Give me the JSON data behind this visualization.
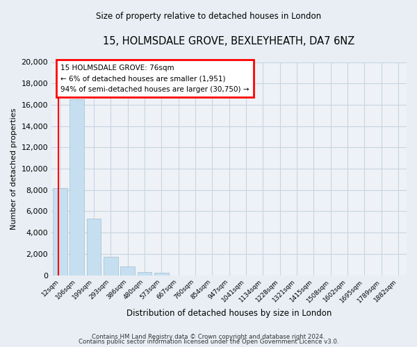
{
  "title": "15, HOLMSDALE GROVE, BEXLEYHEATH, DA7 6NZ",
  "subtitle": "Size of property relative to detached houses in London",
  "xlabel": "Distribution of detached houses by size in London",
  "ylabel": "Number of detached properties",
  "bar_labels": [
    "12sqm",
    "106sqm",
    "199sqm",
    "293sqm",
    "386sqm",
    "480sqm",
    "573sqm",
    "667sqm",
    "760sqm",
    "854sqm",
    "947sqm",
    "1041sqm",
    "1134sqm",
    "1228sqm",
    "1321sqm",
    "1415sqm",
    "1508sqm",
    "1602sqm",
    "1695sqm",
    "1789sqm",
    "1882sqm"
  ],
  "bar_values": [
    8200,
    16500,
    5300,
    1750,
    800,
    300,
    250,
    0,
    0,
    0,
    0,
    0,
    0,
    0,
    0,
    0,
    0,
    0,
    0,
    0,
    0
  ],
  "bar_color": "#c5dff0",
  "annotation_title": "15 HOLMSDALE GROVE: 76sqm",
  "annotation_line1": "← 6% of detached houses are smaller (1,951)",
  "annotation_line2": "94% of semi-detached houses are larger (30,750) →",
  "ylim": [
    0,
    20000
  ],
  "yticks": [
    0,
    2000,
    4000,
    6000,
    8000,
    10000,
    12000,
    14000,
    16000,
    18000,
    20000
  ],
  "footer_line1": "Contains HM Land Registry data © Crown copyright and database right 2024.",
  "footer_line2": "Contains public sector information licensed under the Open Government Licence v3.0.",
  "bg_color": "#e8eef4",
  "plot_bg_color": "#eef2f7",
  "grid_color": "#c8d4e0"
}
